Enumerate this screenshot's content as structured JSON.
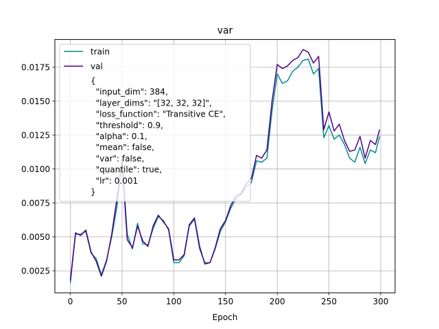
{
  "chart_data": {
    "type": "line",
    "title": "var",
    "xlabel": "Epoch",
    "ylabel": "",
    "xlim": [
      -14.95,
      313.95
    ],
    "ylim": [
      0.00088,
      0.01954
    ],
    "xticks": [
      0,
      50,
      100,
      150,
      200,
      250,
      300
    ],
    "xtick_labels": [
      "0",
      "50",
      "100",
      "150",
      "200",
      "250",
      "300"
    ],
    "yticks": [
      0.0025,
      0.005,
      0.0075,
      0.01,
      0.0125,
      0.015,
      0.0175
    ],
    "ytick_labels": [
      "0.0025",
      "0.0050",
      "0.0075",
      "0.0100",
      "0.0125",
      "0.0150",
      "0.0175"
    ],
    "grid": true,
    "legend_position": "upper-left",
    "series": [
      {
        "name": "train",
        "color": "#008b8b",
        "x": [
          0,
          5,
          10,
          15,
          20,
          25,
          30,
          35,
          40,
          45,
          50,
          55,
          60,
          65,
          70,
          75,
          80,
          85,
          90,
          95,
          100,
          105,
          110,
          115,
          120,
          125,
          130,
          135,
          140,
          145,
          150,
          155,
          160,
          165,
          170,
          175,
          180,
          185,
          190,
          195,
          200,
          205,
          210,
          215,
          220,
          225,
          230,
          235,
          240,
          245,
          250,
          255,
          260,
          265,
          270,
          275,
          280,
          285,
          290,
          295,
          299
        ],
        "values": [
          0.0016,
          0.0052,
          0.0052,
          0.0054,
          0.0038,
          0.0034,
          0.0022,
          0.0033,
          0.005,
          0.0072,
          0.0108,
          0.0052,
          0.0041,
          0.006,
          0.0045,
          0.0044,
          0.0056,
          0.0065,
          0.0062,
          0.0055,
          0.0031,
          0.0031,
          0.0036,
          0.0058,
          0.0063,
          0.0041,
          0.0031,
          0.0031,
          0.0041,
          0.0054,
          0.0061,
          0.0071,
          0.0078,
          0.0081,
          0.0087,
          0.009,
          0.0106,
          0.0105,
          0.0108,
          0.0143,
          0.017,
          0.0163,
          0.0165,
          0.0172,
          0.0175,
          0.018,
          0.0181,
          0.017,
          0.0174,
          0.0123,
          0.0132,
          0.0122,
          0.0125,
          0.0118,
          0.0108,
          0.0105,
          0.0116,
          0.0104,
          0.0114,
          0.0112,
          0.0124
        ]
      },
      {
        "name": "val",
        "color": "#4b0082",
        "x": [
          0,
          5,
          10,
          15,
          20,
          25,
          30,
          35,
          40,
          45,
          50,
          55,
          60,
          65,
          70,
          75,
          80,
          85,
          90,
          95,
          100,
          105,
          110,
          115,
          120,
          125,
          130,
          135,
          140,
          145,
          150,
          155,
          160,
          165,
          170,
          175,
          180,
          185,
          190,
          195,
          200,
          205,
          210,
          215,
          220,
          225,
          230,
          235,
          240,
          245,
          250,
          255,
          260,
          265,
          270,
          275,
          280,
          285,
          290,
          295,
          299
        ],
        "values": [
          0.0018,
          0.0053,
          0.0051,
          0.0055,
          0.0039,
          0.0032,
          0.0021,
          0.0032,
          0.0052,
          0.0078,
          0.0105,
          0.0048,
          0.0042,
          0.0058,
          0.0047,
          0.0043,
          0.0058,
          0.0066,
          0.0061,
          0.0056,
          0.0033,
          0.0033,
          0.0037,
          0.0059,
          0.0064,
          0.0043,
          0.003,
          0.0031,
          0.0042,
          0.0056,
          0.0062,
          0.0073,
          0.008,
          0.0082,
          0.0089,
          0.0093,
          0.011,
          0.0108,
          0.0114,
          0.015,
          0.0177,
          0.0174,
          0.0176,
          0.018,
          0.0182,
          0.0188,
          0.0186,
          0.0178,
          0.0183,
          0.0129,
          0.0142,
          0.0128,
          0.0133,
          0.0121,
          0.0113,
          0.0114,
          0.0124,
          0.0108,
          0.0121,
          0.0118,
          0.0129
        ]
      }
    ],
    "legend_entries": [
      "train",
      "val"
    ],
    "legend_config_lines": [
      "{",
      "  \"input_dim\": 384,",
      "  \"layer_dims\": \"[32, 32, 32]\",",
      "  \"loss_function\": \"Transitive CE\",",
      "  \"threshold\": 0.9,",
      "  \"alpha\": 0.1,",
      "  \"mean\": false,",
      "  \"var\": false,",
      "  \"quantile\": true,",
      "  \"lr\": 0.001",
      "}"
    ]
  }
}
